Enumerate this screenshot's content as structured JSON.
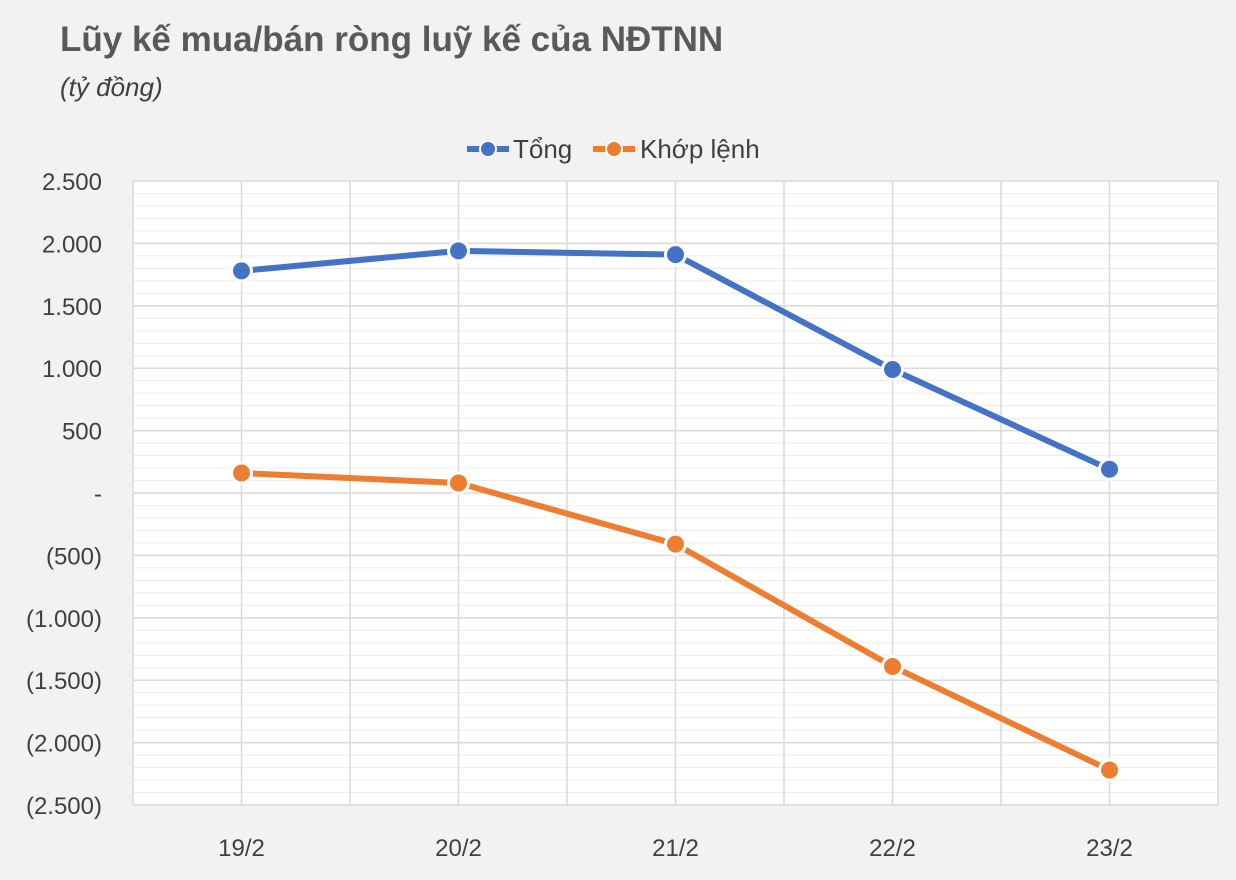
{
  "title": "Lũy kế mua/bán ròng luỹ kế của NĐTNN",
  "subtitle": "(tỷ đồng)",
  "colors": {
    "background": "#f2f2f2",
    "plot_background": "#ffffff",
    "grid_major": "#d9d9d9",
    "grid_minor": "#ececec",
    "text": "#404040"
  },
  "chart_data": {
    "type": "line",
    "categories": [
      "19/2",
      "20/2",
      "21/2",
      "22/2",
      "23/2"
    ],
    "series": [
      {
        "name": "Tổng",
        "color": "#4472c4",
        "values": [
          1780,
          1940,
          1910,
          990,
          190
        ]
      },
      {
        "name": "Khớp lệnh",
        "color": "#ed7d31",
        "values": [
          160,
          80,
          -410,
          -1390,
          -2220
        ]
      }
    ],
    "ylim": [
      -2500,
      2500
    ],
    "yticks": [
      2500,
      2000,
      1500,
      1000,
      500,
      0,
      -500,
      -1000,
      -1500,
      -2000,
      -2500
    ],
    "ytick_labels": [
      "2.500",
      "2.000",
      "1.500",
      "1.000",
      "500",
      "-",
      "(500)",
      "(1.000)",
      "(1.500)",
      "(2.000)",
      "(2.500)"
    ],
    "minor_step": 100,
    "grid": true,
    "legend": "top-center"
  }
}
